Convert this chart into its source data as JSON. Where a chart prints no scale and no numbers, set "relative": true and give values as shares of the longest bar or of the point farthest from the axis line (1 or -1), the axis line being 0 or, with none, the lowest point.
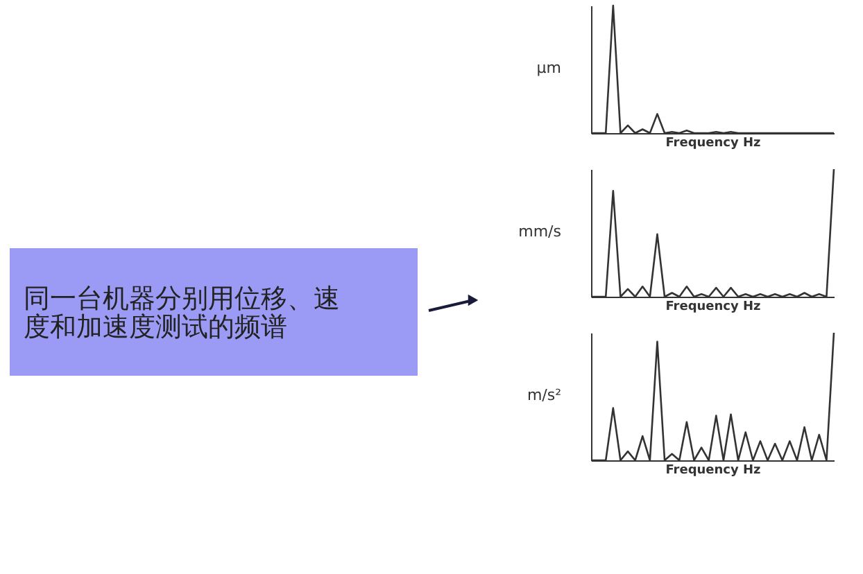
{
  "chart_data": [
    {
      "type": "other",
      "color": "#9b9bf5",
      "annotations": [
        "同一台机器分别用位移、速度和加速度测试的频谱"
      ]
    },
    {
      "type": "line",
      "relative": true,
      "ylabel": "µm",
      "xlabel": "Frequency Hz",
      "tick_labels": false,
      "line_style": "solid",
      "marker": "none",
      "categories": [
        null,
        null,
        null,
        null,
        null,
        null,
        null,
        null,
        null,
        null,
        null,
        null,
        null,
        null,
        null,
        null,
        null,
        null,
        null,
        null,
        null,
        null,
        null,
        null,
        null,
        null,
        null,
        null,
        null,
        null,
        null,
        null,
        null,
        null
      ],
      "series": [
        {
          "color": "#333333",
          "values": [
            0,
            0,
            0,
            1.0,
            0,
            0.06,
            0,
            0.03,
            0,
            0.15,
            0,
            0.01,
            0,
            0.02,
            0,
            0,
            0,
            0.01,
            0,
            0.01,
            0,
            0,
            0,
            0,
            0,
            0,
            0,
            0,
            0,
            0,
            0,
            0,
            0,
            0
          ]
        }
      ]
    },
    {
      "type": "line",
      "relative": true,
      "ylabel": "mm/s",
      "xlabel": "Frequency Hz",
      "tick_labels": false,
      "line_style": "solid",
      "marker": "none",
      "categories": [
        null,
        null,
        null,
        null,
        null,
        null,
        null,
        null,
        null,
        null,
        null,
        null,
        null,
        null,
        null,
        null,
        null,
        null,
        null,
        null,
        null,
        null,
        null,
        null,
        null,
        null,
        null,
        null,
        null,
        null,
        null,
        null,
        null,
        null
      ],
      "series": [
        {
          "color": "#333333",
          "values": [
            0,
            0,
            0,
            0.83,
            0,
            0.06,
            0,
            0.08,
            0,
            0.49,
            0,
            0.03,
            0,
            0.08,
            0,
            0.02,
            0,
            0.07,
            0,
            0.07,
            0,
            0.02,
            0,
            0.02,
            0,
            0.02,
            0,
            0.02,
            0,
            0.03,
            0,
            0.02,
            0,
            1.0
          ]
        }
      ]
    },
    {
      "type": "line",
      "relative": true,
      "ylabel": "m/s²",
      "xlabel": "Frequency Hz",
      "tick_labels": false,
      "line_style": "solid",
      "marker": "none",
      "categories": [
        null,
        null,
        null,
        null,
        null,
        null,
        null,
        null,
        null,
        null,
        null,
        null,
        null,
        null,
        null,
        null,
        null,
        null,
        null,
        null,
        null,
        null,
        null,
        null,
        null,
        null,
        null,
        null,
        null,
        null,
        null,
        null,
        null,
        null
      ],
      "series": [
        {
          "color": "#333333",
          "values": [
            0,
            0,
            0,
            0.41,
            0,
            0.07,
            0,
            0.19,
            0,
            0.93,
            0,
            0.05,
            0,
            0.3,
            0,
            0.1,
            0,
            0.35,
            0,
            0.36,
            0,
            0.22,
            0,
            0.15,
            0,
            0.13,
            0,
            0.15,
            0,
            0.26,
            0,
            0.2,
            0,
            1.0
          ]
        }
      ]
    }
  ]
}
